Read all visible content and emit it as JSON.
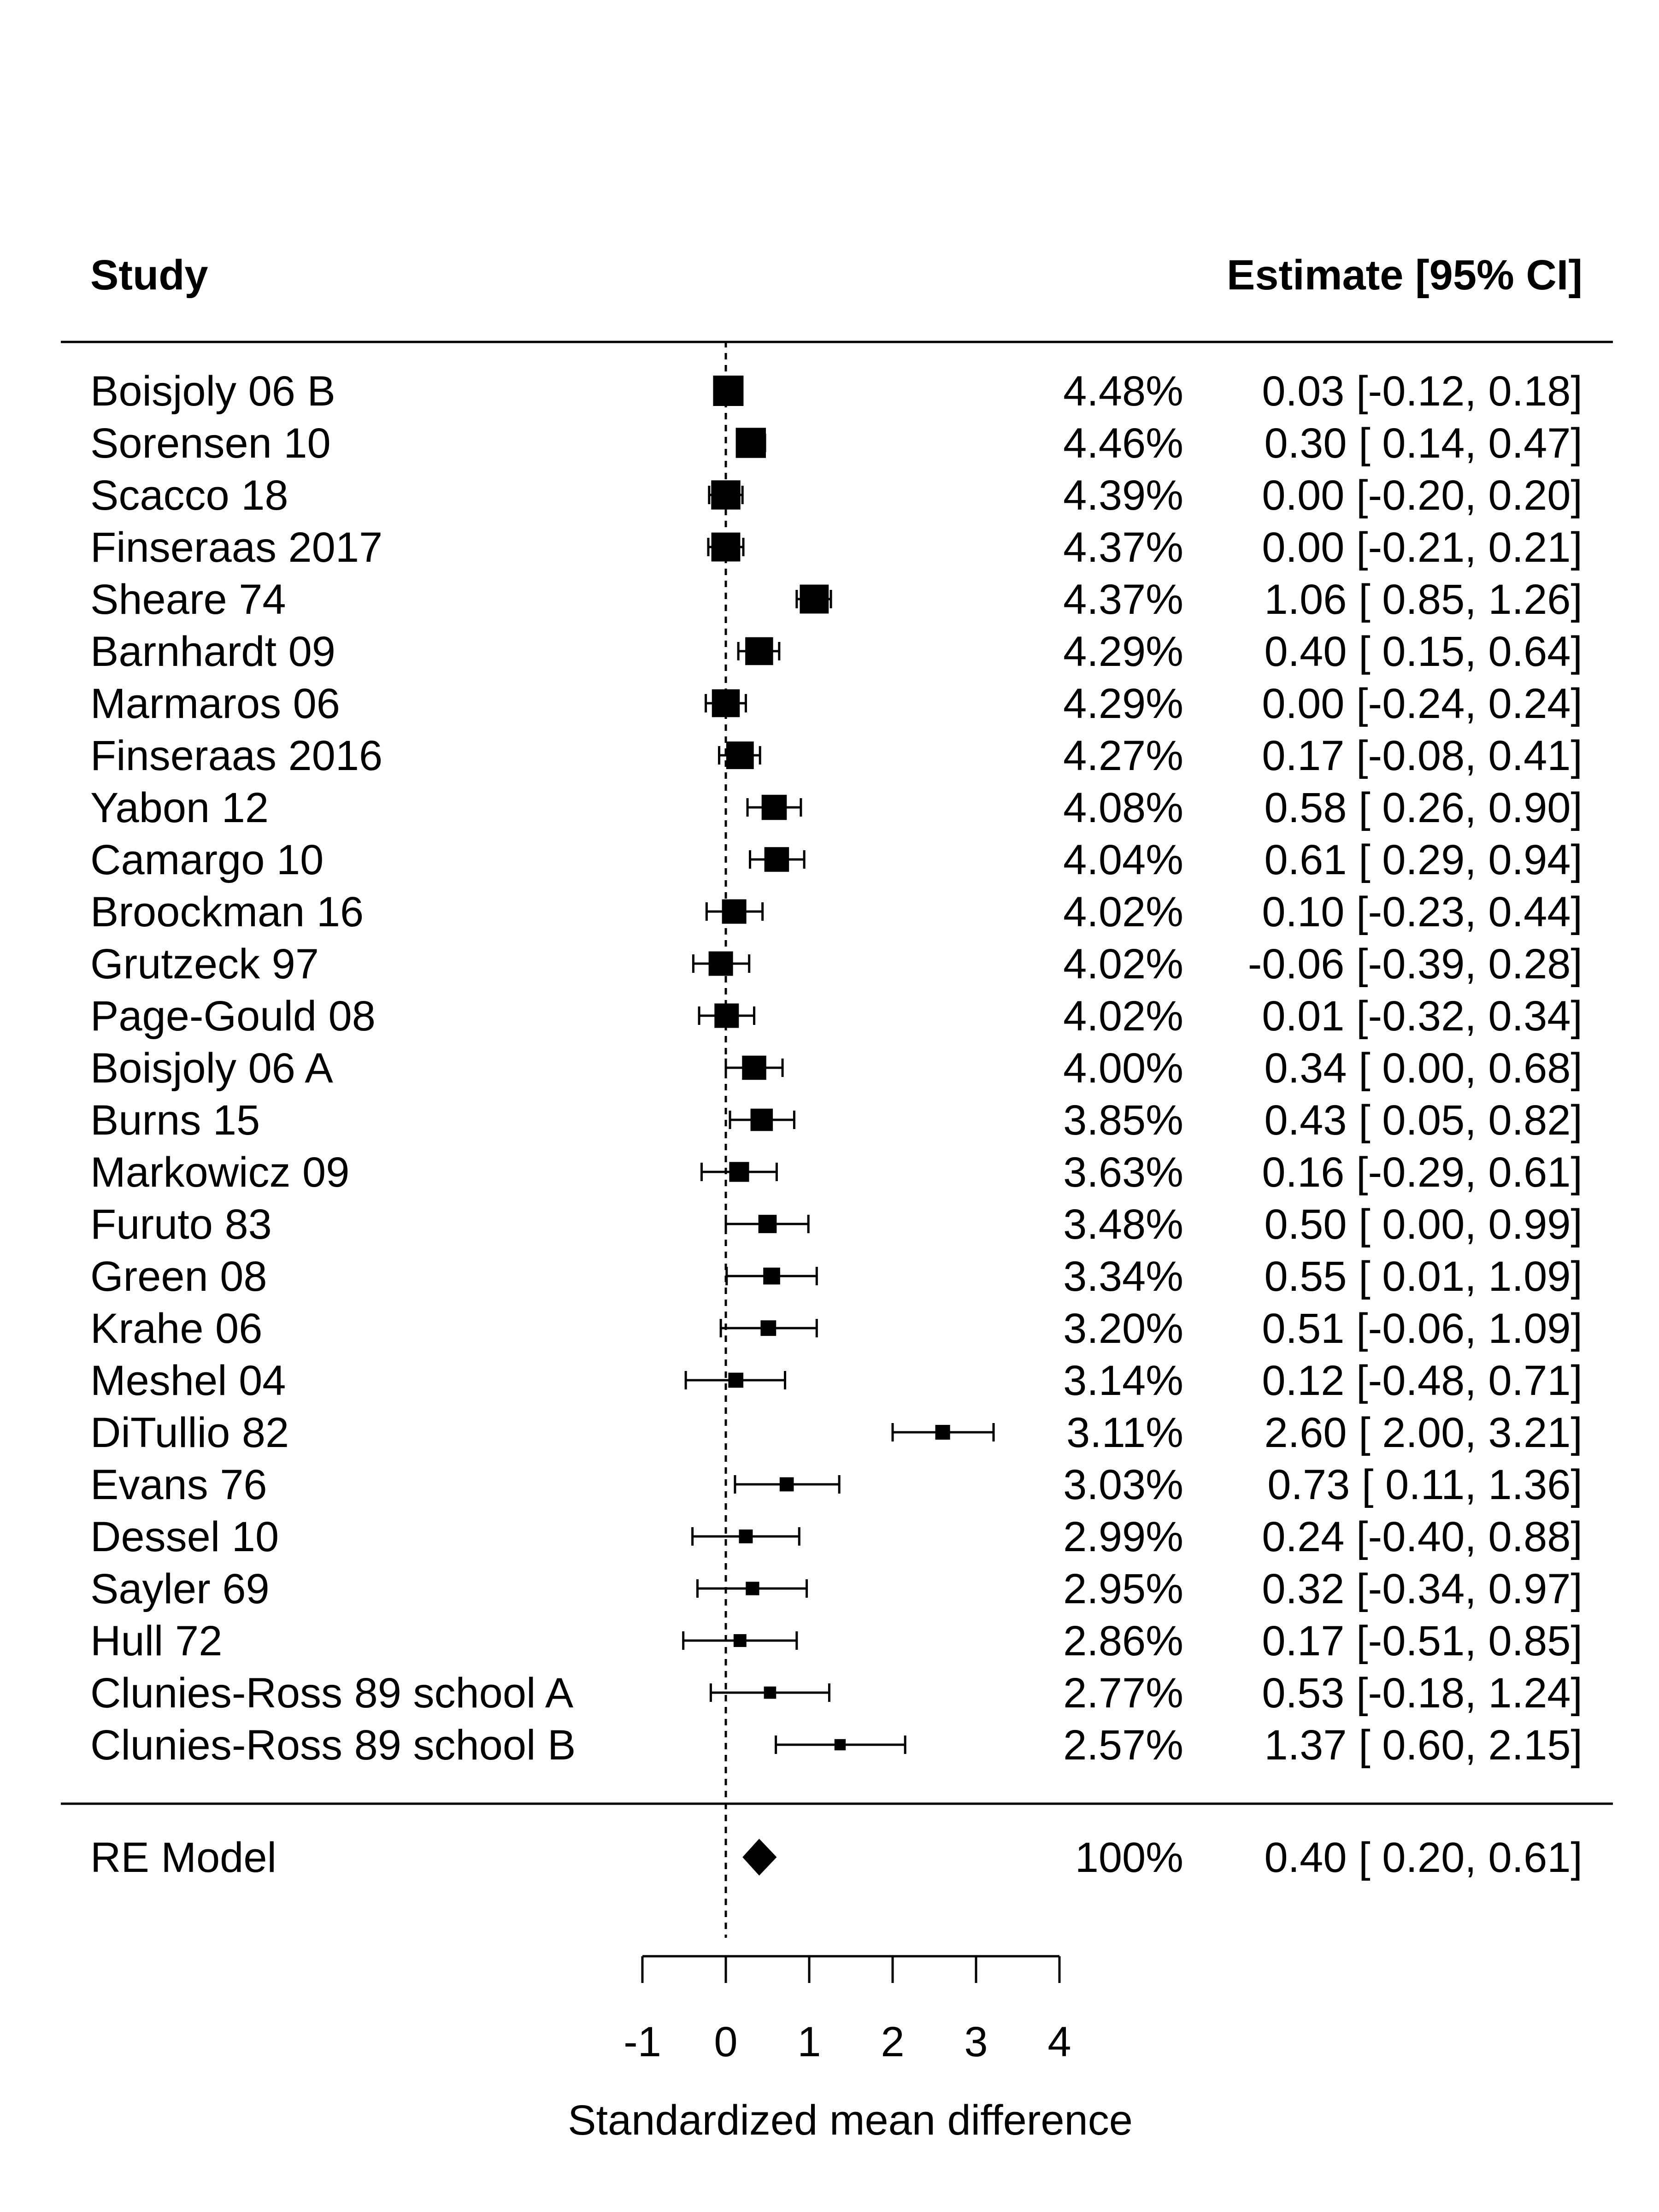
{
  "header": {
    "study_label": "Study",
    "estimate_label": "Estimate [95% CI]"
  },
  "chart_data": {
    "type": "forest",
    "xlabel": "Standardized mean difference",
    "xlim": [
      -1,
      4
    ],
    "xticks": [
      "-1",
      "0",
      "1",
      "2",
      "3",
      "4"
    ],
    "reference_line": 0,
    "studies": [
      {
        "name": "Boisjoly 06 B",
        "weight": "4.48%",
        "ci_text": "0.03 [-0.12, 0.18]",
        "est": 0.03,
        "lo": -0.12,
        "hi": 0.18,
        "w": 4.48
      },
      {
        "name": "Sorensen 10",
        "weight": "4.46%",
        "ci_text": "0.30 [ 0.14, 0.47]",
        "est": 0.3,
        "lo": 0.14,
        "hi": 0.47,
        "w": 4.46
      },
      {
        "name": "Scacco 18",
        "weight": "4.39%",
        "ci_text": "0.00 [-0.20, 0.20]",
        "est": 0.0,
        "lo": -0.2,
        "hi": 0.2,
        "w": 4.39
      },
      {
        "name": "Finseraas 2017",
        "weight": "4.37%",
        "ci_text": "0.00 [-0.21, 0.21]",
        "est": 0.0,
        "lo": -0.21,
        "hi": 0.21,
        "w": 4.37
      },
      {
        "name": "Sheare 74",
        "weight": "4.37%",
        "ci_text": "1.06 [ 0.85, 1.26]",
        "est": 1.06,
        "lo": 0.85,
        "hi": 1.26,
        "w": 4.37
      },
      {
        "name": "Barnhardt 09",
        "weight": "4.29%",
        "ci_text": "0.40 [ 0.15, 0.64]",
        "est": 0.4,
        "lo": 0.15,
        "hi": 0.64,
        "w": 4.29
      },
      {
        "name": "Marmaros 06",
        "weight": "4.29%",
        "ci_text": "0.00 [-0.24, 0.24]",
        "est": 0.0,
        "lo": -0.24,
        "hi": 0.24,
        "w": 4.29
      },
      {
        "name": "Finseraas 2016",
        "weight": "4.27%",
        "ci_text": "0.17 [-0.08, 0.41]",
        "est": 0.17,
        "lo": -0.08,
        "hi": 0.41,
        "w": 4.27
      },
      {
        "name": "Yabon 12",
        "weight": "4.08%",
        "ci_text": "0.58 [ 0.26, 0.90]",
        "est": 0.58,
        "lo": 0.26,
        "hi": 0.9,
        "w": 4.08
      },
      {
        "name": "Camargo 10",
        "weight": "4.04%",
        "ci_text": "0.61 [ 0.29, 0.94]",
        "est": 0.61,
        "lo": 0.29,
        "hi": 0.94,
        "w": 4.04
      },
      {
        "name": "Broockman 16",
        "weight": "4.02%",
        "ci_text": "0.10 [-0.23, 0.44]",
        "est": 0.1,
        "lo": -0.23,
        "hi": 0.44,
        "w": 4.02
      },
      {
        "name": "Grutzeck 97",
        "weight": "4.02%",
        "ci_text": "-0.06 [-0.39, 0.28]",
        "est": -0.06,
        "lo": -0.39,
        "hi": 0.28,
        "w": 4.02
      },
      {
        "name": "Page-Gould 08",
        "weight": "4.02%",
        "ci_text": "0.01 [-0.32, 0.34]",
        "est": 0.01,
        "lo": -0.32,
        "hi": 0.34,
        "w": 4.02
      },
      {
        "name": "Boisjoly 06 A",
        "weight": "4.00%",
        "ci_text": "0.34 [ 0.00, 0.68]",
        "est": 0.34,
        "lo": 0.0,
        "hi": 0.68,
        "w": 4.0
      },
      {
        "name": "Burns 15",
        "weight": "3.85%",
        "ci_text": "0.43 [ 0.05, 0.82]",
        "est": 0.43,
        "lo": 0.05,
        "hi": 0.82,
        "w": 3.85
      },
      {
        "name": "Markowicz 09",
        "weight": "3.63%",
        "ci_text": "0.16 [-0.29, 0.61]",
        "est": 0.16,
        "lo": -0.29,
        "hi": 0.61,
        "w": 3.63
      },
      {
        "name": "Furuto 83",
        "weight": "3.48%",
        "ci_text": "0.50 [ 0.00, 0.99]",
        "est": 0.5,
        "lo": 0.0,
        "hi": 0.99,
        "w": 3.48
      },
      {
        "name": "Green 08",
        "weight": "3.34%",
        "ci_text": "0.55 [ 0.01, 1.09]",
        "est": 0.55,
        "lo": 0.01,
        "hi": 1.09,
        "w": 3.34
      },
      {
        "name": "Krahe 06",
        "weight": "3.20%",
        "ci_text": "0.51 [-0.06, 1.09]",
        "est": 0.51,
        "lo": -0.06,
        "hi": 1.09,
        "w": 3.2
      },
      {
        "name": "Meshel 04",
        "weight": "3.14%",
        "ci_text": "0.12 [-0.48, 0.71]",
        "est": 0.12,
        "lo": -0.48,
        "hi": 0.71,
        "w": 3.14
      },
      {
        "name": "DiTullio 82",
        "weight": "3.11%",
        "ci_text": "2.60 [ 2.00, 3.21]",
        "est": 2.6,
        "lo": 2.0,
        "hi": 3.21,
        "w": 3.11
      },
      {
        "name": "Evans 76",
        "weight": "3.03%",
        "ci_text": "0.73 [ 0.11, 1.36]",
        "est": 0.73,
        "lo": 0.11,
        "hi": 1.36,
        "w": 3.03
      },
      {
        "name": "Dessel 10",
        "weight": "2.99%",
        "ci_text": "0.24 [-0.40, 0.88]",
        "est": 0.24,
        "lo": -0.4,
        "hi": 0.88,
        "w": 2.99
      },
      {
        "name": "Sayler 69",
        "weight": "2.95%",
        "ci_text": "0.32 [-0.34, 0.97]",
        "est": 0.32,
        "lo": -0.34,
        "hi": 0.97,
        "w": 2.95
      },
      {
        "name": "Hull 72",
        "weight": "2.86%",
        "ci_text": "0.17 [-0.51, 0.85]",
        "est": 0.17,
        "lo": -0.51,
        "hi": 0.85,
        "w": 2.86
      },
      {
        "name": "Clunies-Ross 89 school A",
        "weight": "2.77%",
        "ci_text": "0.53 [-0.18, 1.24]",
        "est": 0.53,
        "lo": -0.18,
        "hi": 1.24,
        "w": 2.77
      },
      {
        "name": "Clunies-Ross 89 school B",
        "weight": "2.57%",
        "ci_text": "1.37 [ 0.60, 2.15]",
        "est": 1.37,
        "lo": 0.6,
        "hi": 2.15,
        "w": 2.57
      }
    ],
    "summary": {
      "name": "RE Model",
      "weight": "100%",
      "ci_text": "0.40 [ 0.20, 0.61]",
      "est": 0.4,
      "lo": 0.2,
      "hi": 0.61
    }
  }
}
